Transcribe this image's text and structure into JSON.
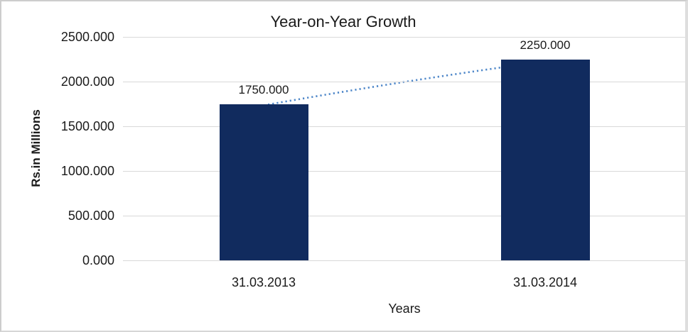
{
  "chart_data": {
    "type": "bar",
    "title": "Year-on-Year Growth",
    "xlabel": "Years",
    "ylabel": "Rs.in Millions",
    "categories": [
      "31.03.2013",
      "31.03.2014"
    ],
    "values": [
      1750,
      2250
    ],
    "data_labels": [
      "1750.000",
      "2250.000"
    ],
    "yticks": [
      "0.000",
      "500.000",
      "1000.000",
      "1500.000",
      "2000.000",
      "2500.000"
    ],
    "ytick_step": 500,
    "ylim": [
      0,
      2500
    ],
    "grid": true,
    "legend": "none",
    "bar_color": "#112b5e",
    "gridline_color": "#d9d9d9",
    "trendline": {
      "style": "dotted",
      "color": "#4e87c9"
    }
  }
}
